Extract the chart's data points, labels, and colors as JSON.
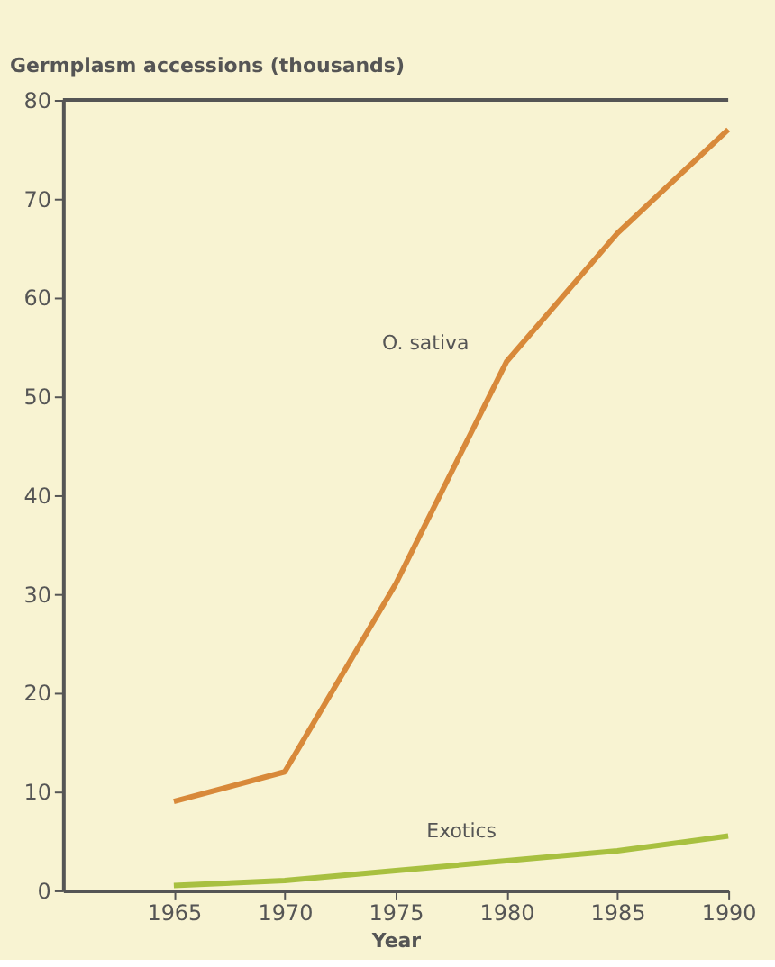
{
  "chart_data": {
    "type": "line",
    "ylabel": "Germplasm accessions (thousands)",
    "xlabel": "Year",
    "x": [
      1965,
      1970,
      1975,
      1980,
      1985,
      1990
    ],
    "series": [
      {
        "name": "O. sativa",
        "color": "#d8893a",
        "values": [
          9,
          12,
          31,
          53.5,
          66.5,
          77
        ]
      },
      {
        "name": "Exotics",
        "color": "#a8c040",
        "values": [
          0.5,
          1,
          2,
          3,
          4,
          5.5
        ]
      }
    ],
    "xlim": [
      1960,
      1990
    ],
    "xticks": [
      1965,
      1970,
      1975,
      1980,
      1985,
      1990
    ],
    "ylim": [
      0,
      80
    ],
    "yticks": [
      0,
      10,
      20,
      30,
      40,
      50,
      60,
      70,
      80
    ],
    "grid": false,
    "marker": "none",
    "line_style": "solid"
  }
}
